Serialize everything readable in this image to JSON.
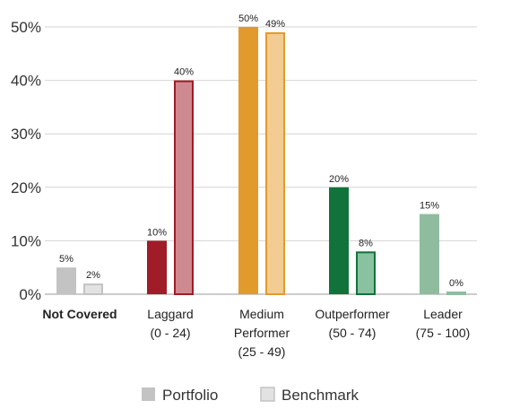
{
  "chart_data": {
    "type": "bar",
    "categories": [
      {
        "lines": [
          "Not Covered"
        ],
        "bold": true
      },
      {
        "lines": [
          "Laggard",
          "(0 - 24)"
        ],
        "bold": false
      },
      {
        "lines": [
          "Medium",
          "Performer",
          "(25 - 49)"
        ],
        "bold": false
      },
      {
        "lines": [
          "Outperformer",
          "(50 - 74)"
        ],
        "bold": false
      },
      {
        "lines": [
          "Leader",
          "(75 - 100)"
        ],
        "bold": false
      }
    ],
    "series": [
      {
        "name": "Portfolio",
        "values": [
          5,
          10,
          50,
          20,
          15
        ],
        "labels": [
          "5%",
          "10%",
          "50%",
          "20%",
          "15%"
        ]
      },
      {
        "name": "Benchmark",
        "values": [
          2,
          40,
          49,
          8,
          0
        ],
        "labels": [
          "2%",
          "40%",
          "49%",
          "8%",
          "0%"
        ]
      }
    ],
    "category_colors": [
      {
        "portfolio": "#c3c3c3",
        "benchmark_fill": "#e2e2e2",
        "benchmark_stroke": "#c3c3c3"
      },
      {
        "portfolio": "#a01c28",
        "benchmark_fill": "#cf8990",
        "benchmark_stroke": "#a01c28"
      },
      {
        "portfolio": "#e39a2c",
        "benchmark_fill": "#f2cc92",
        "benchmark_stroke": "#e39a2c"
      },
      {
        "portfolio": "#12733a",
        "benchmark_fill": "#88c2a0",
        "benchmark_stroke": "#12733a"
      },
      {
        "portfolio": "#8fbc9e",
        "benchmark_fill": "#c9e0d2",
        "benchmark_stroke": "#8fbc9e"
      }
    ],
    "y_ticks": [
      "0%",
      "10%",
      "20%",
      "30%",
      "40%",
      "50%"
    ],
    "ylim": [
      0,
      50
    ],
    "grid": true,
    "legend": {
      "placement": "bottom",
      "items": [
        {
          "label": "Portfolio",
          "fill": "#c3c3c3",
          "stroke": "#c3c3c3"
        },
        {
          "label": "Benchmark",
          "fill": "#e2e2e2",
          "stroke": "#c3c3c3"
        }
      ]
    }
  }
}
